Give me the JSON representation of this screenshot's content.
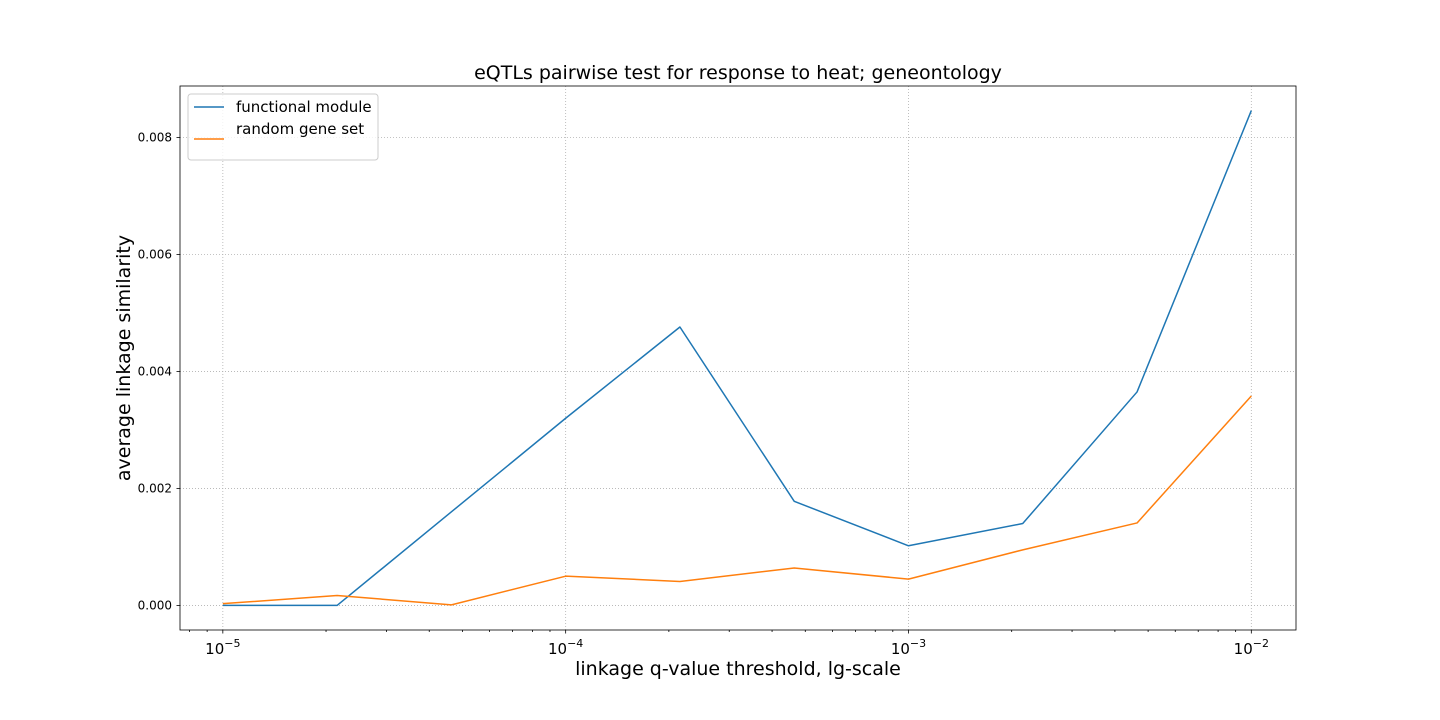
{
  "chart_data": {
    "type": "line",
    "title": "eQTLs pairwise test for response to heat; geneontology",
    "xlabel": "linkage q-value threshold, lg-scale",
    "ylabel": "average linkage similarity",
    "xscale": "log",
    "xlim": [
      7.5e-06,
      0.0135
    ],
    "ylim": [
      -0.00042,
      0.00888
    ],
    "x": [
      1e-05,
      2.154e-05,
      4.642e-05,
      0.0001,
      0.0002154,
      0.0004642,
      0.001,
      0.002154,
      0.004642,
      0.01
    ],
    "xticks": [
      {
        "value": 1e-05,
        "base": "10",
        "exp": "−5"
      },
      {
        "value": 0.0001,
        "base": "10",
        "exp": "−4"
      },
      {
        "value": 0.001,
        "base": "10",
        "exp": "−3"
      },
      {
        "value": 0.01,
        "base": "10",
        "exp": "−2"
      }
    ],
    "yticks": [
      {
        "value": 0.0,
        "label": "0.000"
      },
      {
        "value": 0.002,
        "label": "0.002"
      },
      {
        "value": 0.004,
        "label": "0.004"
      },
      {
        "value": 0.006,
        "label": "0.006"
      },
      {
        "value": 0.008,
        "label": "0.008"
      }
    ],
    "grid": true,
    "legend_position": "upper-left",
    "series": [
      {
        "name": "functional module",
        "color": "#1f77b4",
        "values": [
          0.0,
          0.0,
          0.0016,
          0.0032,
          0.00476,
          0.00178,
          0.00102,
          0.0014,
          0.00365,
          0.00846
        ]
      },
      {
        "name": "random gene set",
        "color": "#ff7f0e",
        "values": [
          3e-05,
          0.00017,
          1e-05,
          0.0005,
          0.00041,
          0.00064,
          0.00045,
          0.00095,
          0.00141,
          0.00358
        ]
      }
    ]
  }
}
